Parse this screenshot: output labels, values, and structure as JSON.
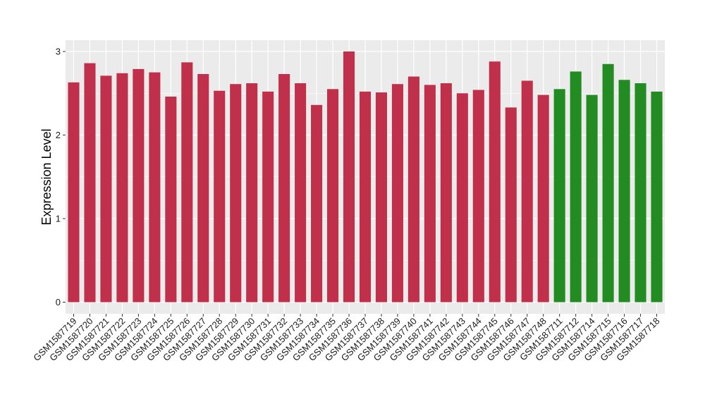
{
  "chart_data": {
    "type": "bar",
    "title": "",
    "xlabel": "",
    "ylabel": "Expression Level",
    "ylim": [
      0,
      3.05
    ],
    "yticks": [
      0,
      1,
      2,
      3
    ],
    "grid": true,
    "legend": "none",
    "colors": {
      "group_a": "#c0304a",
      "group_b": "#228b22",
      "panel_bg": "#ebebeb",
      "grid": "#ffffff"
    },
    "categories": [
      "GSM1587719",
      "GSM1587720",
      "GSM1587721",
      "GSM1587722",
      "GSM1587723",
      "GSM1587724",
      "GSM1587725",
      "GSM1587726",
      "GSM1587727",
      "GSM1587728",
      "GSM1587729",
      "GSM1587730",
      "GSM1587731",
      "GSM1587732",
      "GSM1587733",
      "GSM1587734",
      "GSM1587735",
      "GSM1587736",
      "GSM1587737",
      "GSM1587738",
      "GSM1587739",
      "GSM1587740",
      "GSM1587741",
      "GSM1587742",
      "GSM1587743",
      "GSM1587744",
      "GSM1587745",
      "GSM1587746",
      "GSM1587747",
      "GSM1587748",
      "GSM1587711",
      "GSM1587712",
      "GSM1587714",
      "GSM1587715",
      "GSM1587716",
      "GSM1587717",
      "GSM1587718"
    ],
    "values": [
      2.63,
      2.86,
      2.71,
      2.74,
      2.79,
      2.75,
      2.46,
      2.87,
      2.73,
      2.53,
      2.61,
      2.62,
      2.52,
      2.73,
      2.62,
      2.36,
      2.55,
      3.0,
      2.52,
      2.51,
      2.61,
      2.7,
      2.6,
      2.62,
      2.5,
      2.54,
      2.88,
      2.33,
      2.65,
      2.48,
      2.55,
      2.76,
      2.48,
      2.85,
      2.66,
      2.62,
      2.52
    ],
    "groups": [
      "a",
      "a",
      "a",
      "a",
      "a",
      "a",
      "a",
      "a",
      "a",
      "a",
      "a",
      "a",
      "a",
      "a",
      "a",
      "a",
      "a",
      "a",
      "a",
      "a",
      "a",
      "a",
      "a",
      "a",
      "a",
      "a",
      "a",
      "a",
      "a",
      "a",
      "b",
      "b",
      "b",
      "b",
      "b",
      "b",
      "b"
    ]
  }
}
